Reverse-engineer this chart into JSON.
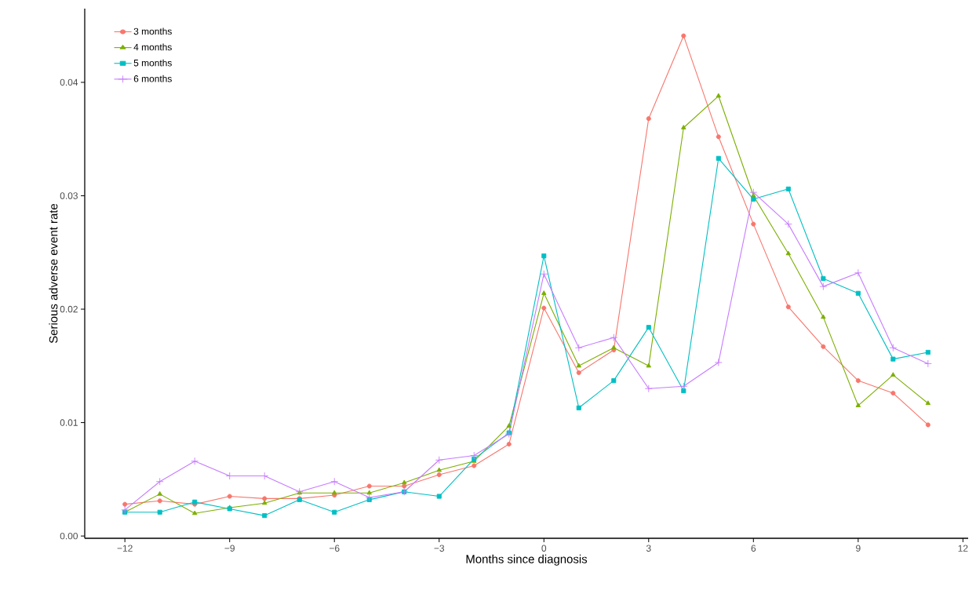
{
  "chart_data": {
    "type": "line",
    "xlabel": "Months since diagnosis",
    "ylabel": "Serious adverse event rate",
    "x": [
      -12,
      -11,
      -10,
      -9,
      -8,
      -7,
      -6,
      -5,
      -4,
      -3,
      -2,
      -1,
      0,
      1,
      2,
      3,
      4,
      5,
      6,
      7,
      8,
      9,
      10,
      11
    ],
    "series": [
      {
        "name": "3 months",
        "color": "#f8766d",
        "marker": "circle",
        "values": [
          0.0028,
          0.0031,
          0.0028,
          0.0035,
          0.0033,
          0.0033,
          0.0036,
          0.0044,
          0.0044,
          0.0054,
          0.0062,
          0.0081,
          0.0201,
          0.0144,
          0.0164,
          0.0368,
          0.0441,
          0.0352,
          0.0275,
          0.0202,
          0.0167,
          0.0137,
          0.0126,
          0.0098
        ]
      },
      {
        "name": "4 months",
        "color": "#7cae00",
        "marker": "triangle",
        "values": [
          0.0021,
          0.0037,
          0.002,
          0.0025,
          0.0029,
          0.0038,
          0.0038,
          0.0038,
          0.0047,
          0.0058,
          0.0066,
          0.0097,
          0.0214,
          0.015,
          0.0166,
          0.015,
          0.036,
          0.0388,
          0.03,
          0.0249,
          0.0193,
          0.0115,
          0.0142,
          0.0117
        ]
      },
      {
        "name": "5 months",
        "color": "#00bfc4",
        "marker": "square",
        "values": [
          0.0021,
          0.0021,
          0.003,
          0.0024,
          0.0018,
          0.0032,
          0.0021,
          0.0032,
          0.0039,
          0.0035,
          0.0068,
          0.0091,
          0.0247,
          0.0113,
          0.0137,
          0.0184,
          0.0128,
          0.0333,
          0.0297,
          0.0306,
          0.0227,
          0.0214,
          0.0156,
          0.0162
        ]
      },
      {
        "name": "6 months",
        "color": "#c77cff",
        "marker": "cross",
        "values": [
          0.0023,
          0.0048,
          0.0066,
          0.0053,
          0.0053,
          0.0039,
          0.0048,
          0.0034,
          0.0039,
          0.0067,
          0.0071,
          0.009,
          0.0231,
          0.0166,
          0.0175,
          0.013,
          0.0132,
          0.0153,
          0.0303,
          0.0275,
          0.022,
          0.0232,
          0.0166,
          0.0152
        ]
      }
    ],
    "xlim": [
      -13.15,
      12.15
    ],
    "ylim": [
      -0.0002,
      0.0465
    ],
    "xticks": [
      {
        "value": -12,
        "label": "−12"
      },
      {
        "value": -9,
        "label": "−9"
      },
      {
        "value": -6,
        "label": "−6"
      },
      {
        "value": -3,
        "label": "−3"
      },
      0,
      3,
      6,
      9,
      12
    ],
    "yticks": [
      {
        "value": 0,
        "label": "0.00"
      },
      {
        "value": 0.01,
        "label": "0.01"
      },
      {
        "value": 0.02,
        "label": "0.02"
      },
      {
        "value": 0.03,
        "label": "0.03"
      },
      {
        "value": 0.04,
        "label": "0.04"
      }
    ],
    "grid": false,
    "legend": "top left",
    "line_style": "solid"
  }
}
